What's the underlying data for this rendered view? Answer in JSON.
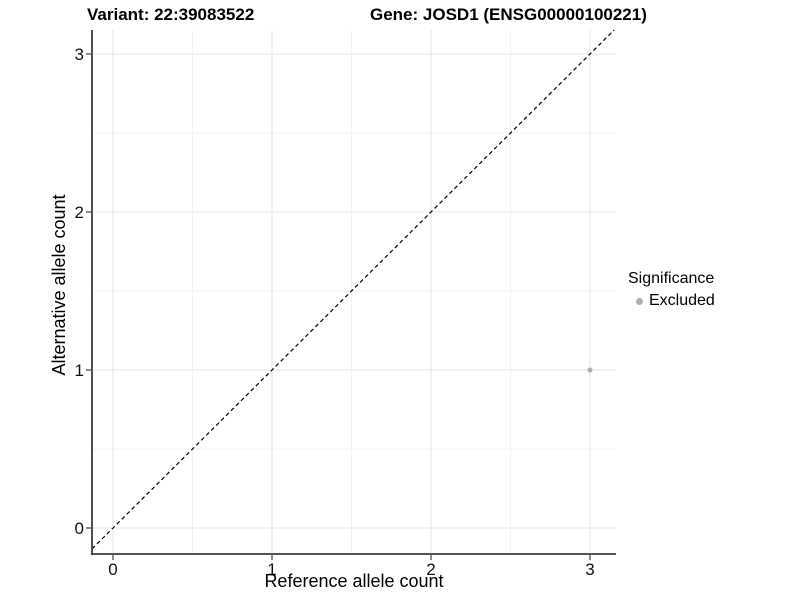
{
  "figure": {
    "title_left": "Variant: 22:39083522",
    "title_right": "Gene: JOSD1 (ENSG00000100221)"
  },
  "chart_data": {
    "type": "scatter",
    "xlabel": "Reference allele count",
    "ylabel": "Alternative allele count",
    "xlim": [
      -0.15,
      3.15
    ],
    "ylim": [
      -0.15,
      3.15
    ],
    "xticks": [
      0,
      1,
      2,
      3
    ],
    "yticks": [
      0,
      1,
      2,
      3
    ],
    "xminor": [
      0.5,
      1.5,
      2.5
    ],
    "yminor": [
      0.5,
      1.5,
      2.5
    ],
    "grid": "major and minor gridlines on white panel",
    "reference_line": {
      "kind": "identity y=x",
      "style": "dashed",
      "color": "#000000"
    },
    "series": [
      {
        "name": "Excluded",
        "color": "#b0b0b0",
        "points": [
          {
            "x": 3,
            "y": 1
          }
        ]
      }
    ],
    "legend": {
      "title": "Significance",
      "position": "right",
      "entries": [
        {
          "label": "Excluded",
          "marker": "circle",
          "color": "#b0b0b0"
        }
      ]
    }
  },
  "colors": {
    "background": "#ffffff",
    "grid_major": "#e6e6e6",
    "grid_minor": "#f2f2f2",
    "axis_line": "#3d3d3d",
    "tick_mark": "#3d3d3d",
    "tick_label": "#111111",
    "diagonal": "#000000",
    "point": "#b0b0b0"
  }
}
